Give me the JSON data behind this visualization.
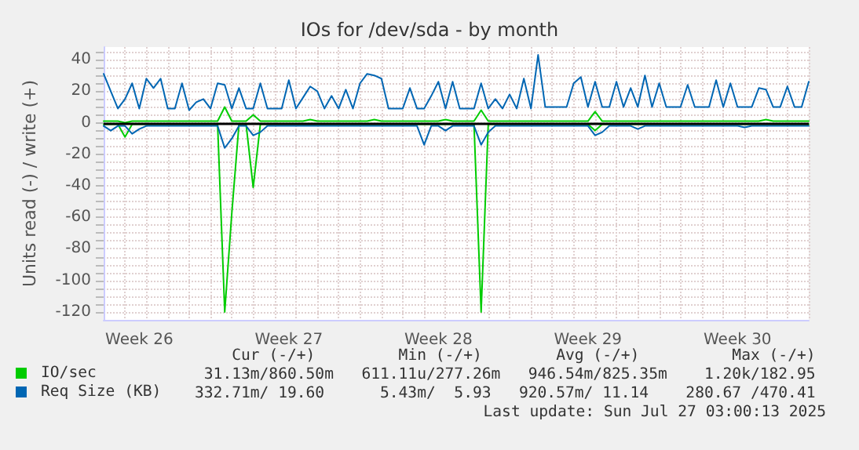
{
  "chart_data": {
    "type": "line",
    "title": "IOs for /dev/sda - by month",
    "ylabel": "Units read (-) / write (+)",
    "categories": [
      null,
      null,
      null,
      null,
      null,
      "Week 26",
      null,
      null,
      null,
      null,
      null,
      null,
      null,
      null,
      null,
      null,
      null,
      null,
      null,
      null,
      null,
      null,
      null,
      null,
      null,
      null,
      "Week 27",
      null,
      null,
      null,
      null,
      null,
      null,
      null,
      null,
      null,
      null,
      null,
      null,
      null,
      null,
      null,
      null,
      null,
      null,
      null,
      null,
      "Week 28",
      null,
      null,
      null,
      null,
      null,
      null,
      null,
      null,
      null,
      null,
      null,
      null,
      null,
      null,
      null,
      null,
      null,
      null,
      null,
      null,
      "Week 29",
      null,
      null,
      null,
      null,
      null,
      null,
      null,
      null,
      null,
      null,
      null,
      null,
      null,
      null,
      null,
      null,
      null,
      null,
      null,
      null,
      "Week 30",
      null,
      null,
      null,
      null,
      null,
      null,
      null,
      null,
      null,
      null
    ],
    "ylim": [
      -125,
      48
    ],
    "yticks": [
      40,
      20,
      0,
      -20,
      -40,
      -60,
      -80,
      -100,
      -120,
      {
        "value": 45,
        "label": null
      },
      {
        "value": 35,
        "label": null
      },
      {
        "value": 30,
        "label": null
      },
      {
        "value": 25,
        "label": null
      },
      {
        "value": 15,
        "label": null
      },
      {
        "value": 10,
        "label": null
      },
      {
        "value": 5,
        "label": null
      },
      {
        "value": -5,
        "label": null
      },
      {
        "value": -10,
        "label": null
      },
      {
        "value": -15,
        "label": null
      },
      {
        "value": -25,
        "label": null
      },
      {
        "value": -30,
        "label": null
      },
      {
        "value": -35,
        "label": null
      },
      {
        "value": -45,
        "label": null
      },
      {
        "value": -50,
        "label": null
      },
      {
        "value": -55,
        "label": null
      },
      {
        "value": -65,
        "label": null
      },
      {
        "value": -70,
        "label": null
      },
      {
        "value": -75,
        "label": null
      },
      {
        "value": -85,
        "label": null
      },
      {
        "value": -90,
        "label": null
      },
      {
        "value": -95,
        "label": null
      },
      {
        "value": -105,
        "label": null
      },
      {
        "value": -110,
        "label": null
      },
      {
        "value": -115,
        "label": null
      }
    ],
    "grid": true,
    "legend": "bottom",
    "marker": "none",
    "line_style": "solid",
    "ref_lines": [
      {
        "axis": "y",
        "value": 0,
        "color": "#000000"
      }
    ],
    "series": [
      {
        "name": "IO/sec",
        "color": "#00cc00",
        "values": [
          1,
          1,
          1,
          0,
          1,
          1,
          1,
          1,
          1,
          1,
          1,
          1,
          1,
          1,
          1,
          1,
          1,
          10,
          1,
          1,
          1,
          5,
          1,
          1,
          1,
          1,
          1,
          1,
          1,
          2,
          1,
          1,
          1,
          1,
          1,
          1,
          1,
          1,
          2,
          1,
          1,
          1,
          1,
          1,
          1,
          1,
          1,
          1,
          2,
          1,
          1,
          1,
          1,
          8,
          1,
          1,
          1,
          1,
          1,
          1,
          1,
          1,
          1,
          1,
          1,
          1,
          1,
          1,
          1,
          7,
          1,
          1,
          1,
          1,
          1,
          1,
          1,
          1,
          1,
          1,
          1,
          1,
          1,
          1,
          1,
          1,
          1,
          1,
          1,
          1,
          1,
          1,
          1,
          2,
          1,
          1,
          1,
          1,
          1,
          1
        ]
      },
      {
        "color": "#00cc00",
        "values": [
          -1,
          -1,
          -1,
          -9,
          -1,
          -1,
          -1,
          -1,
          -1,
          -1,
          -1,
          -1,
          -1,
          -1,
          -1,
          -1,
          -1,
          -120,
          -57,
          -1,
          -1,
          -41,
          -1,
          -1,
          -1,
          -1,
          -1,
          -1,
          -1,
          -1,
          -1,
          -1,
          -1,
          -1,
          -1,
          -1,
          -1,
          -1,
          -1,
          -1,
          -1,
          -1,
          -1,
          -1,
          -1,
          -1,
          -1,
          -1,
          -1,
          -1,
          -1,
          -1,
          -1,
          -120,
          -1,
          -1,
          -1,
          -1,
          -1,
          -1,
          -1,
          -1,
          -1,
          -1,
          -1,
          -1,
          -1,
          -1,
          -1,
          -5,
          -1,
          -1,
          -1,
          -1,
          -1,
          -1,
          -1,
          -1,
          -1,
          -1,
          -1,
          -1,
          -1,
          -1,
          -1,
          -1,
          -1,
          -1,
          -1,
          -1,
          -1,
          -1,
          -1,
          -1,
          -1,
          -1,
          -1,
          -1,
          -1,
          -1
        ]
      },
      {
        "name": "Req Size (KB)",
        "color": "#0066b3",
        "values": [
          31,
          20,
          9,
          15,
          25,
          9,
          28,
          22,
          28,
          9,
          9,
          25,
          8,
          13,
          15,
          9,
          25,
          24,
          9,
          22,
          9,
          9,
          25,
          9,
          9,
          9,
          27,
          9,
          16,
          23,
          20,
          9,
          17,
          9,
          21,
          9,
          25,
          31,
          30,
          28,
          9,
          9,
          9,
          22,
          9,
          9,
          17,
          26,
          9,
          26,
          9,
          9,
          9,
          25,
          9,
          15,
          9,
          18,
          9,
          28,
          9,
          43,
          10,
          10,
          10,
          10,
          25,
          29,
          10,
          26,
          10,
          10,
          26,
          10,
          22,
          10,
          30,
          10,
          25,
          10,
          10,
          10,
          24,
          10,
          10,
          10,
          27,
          10,
          25,
          10,
          10,
          10,
          22,
          21,
          10,
          10,
          23,
          10,
          10,
          26
        ]
      },
      {
        "color": "#0066b3",
        "values": [
          -2,
          -5,
          -2,
          -2,
          -7,
          -4,
          -2,
          -2,
          -2,
          -2,
          -2,
          -2,
          -2,
          -2,
          -2,
          -2,
          -2,
          -16,
          -10,
          -2,
          -2,
          -8,
          -6,
          -2,
          -2,
          -2,
          -2,
          -2,
          -2,
          -2,
          -2,
          -2,
          -2,
          -2,
          -2,
          -2,
          -2,
          -2,
          -2,
          -2,
          -2,
          -2,
          -2,
          -2,
          -2,
          -14,
          -2,
          -2,
          -5,
          -2,
          -2,
          -2,
          -2,
          -14,
          -6,
          -2,
          -2,
          -2,
          -2,
          -2,
          -2,
          -2,
          -2,
          -2,
          -2,
          -2,
          -2,
          -2,
          -2,
          -8,
          -6,
          -2,
          -2,
          -2,
          -2,
          -4,
          -2,
          -2,
          -2,
          -2,
          -2,
          -2,
          -2,
          -2,
          -2,
          -2,
          -2,
          -2,
          -2,
          -2,
          -3,
          -2,
          -2,
          -2,
          -2,
          -2,
          -2,
          -2,
          -2,
          -2
        ]
      }
    ],
    "annotations": [
      "    Cur (-/+)         Min (-/+)        Avg (-/+)          Max (-/+)",
      " 31.13m/860.50m   611.11u/277.26m   946.54m/825.35m    1.20k/182.95",
      "332.71m/ 19.60      5.43m/  5.93   920.57m/ 11.14    280.67 /470.41",
      "Last update: Sun Jul 27 03:00:13 2025"
    ]
  }
}
